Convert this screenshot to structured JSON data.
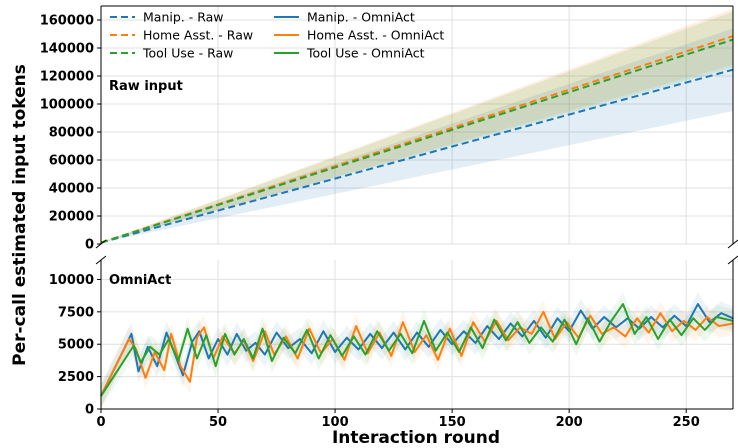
{
  "chart_data": {
    "type": "line",
    "xlabel": "Interaction round",
    "ylabel": "Per-call estimated input tokens",
    "xlim": [
      0,
      270
    ],
    "x_ticks": [
      "0",
      "50",
      "100",
      "150",
      "200",
      "250"
    ],
    "grid": true,
    "legend_position": "top-left",
    "panels": [
      {
        "label": "Raw input",
        "ylim": [
          0,
          170000
        ],
        "y_ticks": [
          "0",
          "20000",
          "40000",
          "60000",
          "80000",
          "100000",
          "120000",
          "140000",
          "160000"
        ],
        "series": [
          {
            "name": "Manip. - Raw",
            "color": "#1f77b4",
            "style": "dashed",
            "x": [
              0,
              270
            ],
            "y": [
              1000,
              124500
            ],
            "band_lower": [
              1000,
              95000
            ],
            "band_upper": [
              1000,
              154000
            ]
          },
          {
            "name": "Home Asst. - Raw",
            "color": "#ff7f0e",
            "style": "dashed",
            "x": [
              0,
              270
            ],
            "y": [
              1000,
              148500
            ],
            "band_lower": [
              1000,
              128000
            ],
            "band_upper": [
              1000,
              168000
            ]
          },
          {
            "name": "Tool Use - Raw",
            "color": "#2ca02c",
            "style": "dashed",
            "x": [
              0,
              270
            ],
            "y": [
              1000,
              146000
            ],
            "band_lower": [
              1000,
              126000
            ],
            "band_upper": [
              1000,
              166000
            ]
          }
        ]
      },
      {
        "label": "OmniAct",
        "ylim": [
          0,
          11500
        ],
        "y_ticks": [
          "0",
          "2500",
          "5000",
          "7500",
          "10000"
        ],
        "series": [
          {
            "name": "Manip. - OmniAct",
            "color": "#1f77b4",
            "style": "solid",
            "x": [
              0,
              13,
              16,
              20,
              24,
              28,
              31,
              35,
              39,
              42,
              46,
              50,
              54,
              58,
              62,
              66,
              70,
              75,
              80,
              85,
              90,
              95,
              100,
              105,
              110,
              115,
              120,
              125,
              130,
              135,
              140,
              145,
              150,
              155,
              160,
              165,
              170,
              175,
              180,
              185,
              190,
              195,
              200,
              205,
              210,
              215,
              220,
              225,
              230,
              235,
              240,
              245,
              250,
              255,
              260,
              265,
              270
            ],
            "y": [
              1000,
              5800,
              2900,
              4800,
              3300,
              5900,
              4500,
              2600,
              5200,
              6000,
              3900,
              5400,
              4200,
              5800,
              4500,
              5100,
              4200,
              5900,
              4700,
              5400,
              4300,
              6000,
              4400,
              5500,
              4600,
              5800,
              4700,
              5900,
              4600,
              5900,
              4800,
              6100,
              5000,
              6000,
              5100,
              6400,
              5400,
              6600,
              5600,
              6800,
              5500,
              7000,
              6000,
              7600,
              6200,
              7100,
              6300,
              7000,
              6200,
              7100,
              6300,
              7200,
              6400,
              8100,
              6700,
              7400,
              7000
            ]
          },
          {
            "name": "Home Asst. - OmniAct",
            "color": "#ff7f0e",
            "style": "solid",
            "x": [
              0,
              12,
              15,
              19,
              23,
              27,
              30,
              34,
              38,
              41,
              44,
              48,
              52,
              57,
              61,
              65,
              70,
              74,
              79,
              84,
              89,
              94,
              99,
              104,
              109,
              114,
              119,
              124,
              129,
              134,
              139,
              144,
              149,
              154,
              159,
              164,
              169,
              174,
              179,
              184,
              189,
              194,
              199,
              204,
              209,
              214,
              219,
              224,
              229,
              234,
              239,
              244,
              249,
              254,
              259,
              264,
              270
            ],
            "y": [
              1000,
              5400,
              4600,
              2400,
              4400,
              3000,
              5800,
              3300,
              2100,
              5500,
              6300,
              3900,
              5600,
              4300,
              5300,
              3700,
              6000,
              4200,
              5600,
              3900,
              6200,
              4300,
              5400,
              3800,
              6400,
              4300,
              5900,
              4100,
              6700,
              4400,
              5700,
              3800,
              6200,
              4100,
              6700,
              5200,
              6800,
              5300,
              6300,
              5800,
              7500,
              5400,
              6700,
              5500,
              7200,
              5800,
              6300,
              5600,
              7000,
              5900,
              7400,
              6000,
              6800,
              6100,
              7100,
              6400,
              6600
            ]
          },
          {
            "name": "Tool Use - OmniAct",
            "color": "#2ca02c",
            "style": "solid",
            "x": [
              0,
              14,
              17,
              21,
              25,
              29,
              33,
              37,
              41,
              45,
              49,
              53,
              57,
              61,
              65,
              69,
              73,
              78,
              83,
              88,
              93,
              98,
              103,
              108,
              113,
              118,
              123,
              128,
              133,
              138,
              143,
              148,
              153,
              158,
              163,
              168,
              173,
              178,
              183,
              188,
              193,
              198,
              203,
              208,
              213,
              218,
              223,
              228,
              233,
              238,
              243,
              248,
              253,
              258,
              263,
              270
            ],
            "y": [
              1000,
              4900,
              3600,
              4800,
              4200,
              5400,
              3700,
              6200,
              3900,
              5700,
              3300,
              5800,
              4200,
              5400,
              3900,
              6200,
              3700,
              5500,
              4300,
              6100,
              3900,
              5700,
              4100,
              5600,
              4200,
              6000,
              4500,
              5800,
              4300,
              6800,
              4500,
              5900,
              4400,
              6300,
              4700,
              6900,
              5300,
              6700,
              5100,
              6300,
              5200,
              6900,
              5000,
              7000,
              5200,
              6800,
              8100,
              5800,
              7100,
              5400,
              6900,
              5700,
              7000,
              6100,
              7100,
              6800
            ]
          }
        ]
      }
    ]
  }
}
